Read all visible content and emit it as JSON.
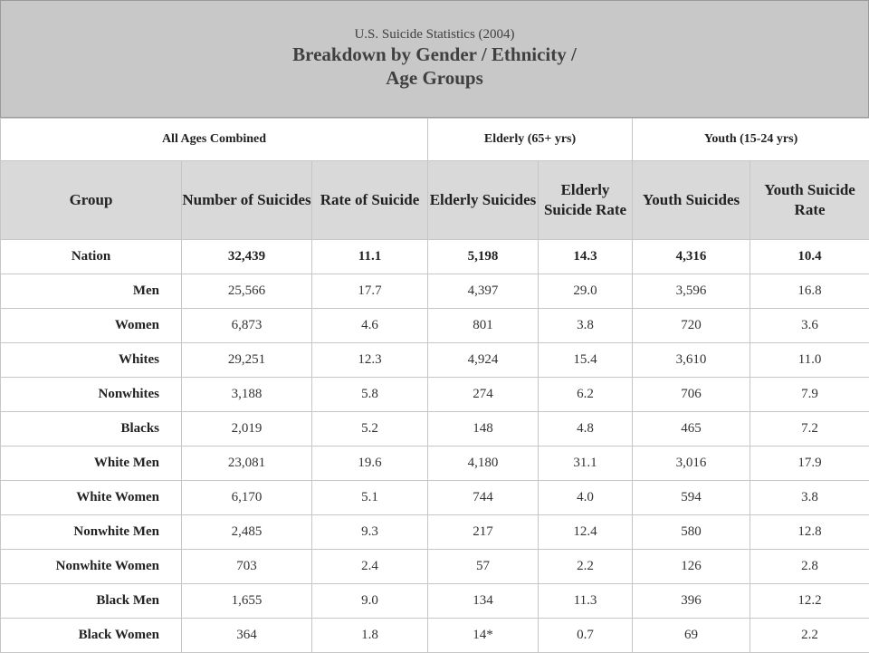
{
  "title": {
    "subtitle": "U.S. Suicide Statistics (2004)",
    "line1": "Breakdown by Gender / Ethnicity /",
    "line2": "Age Groups"
  },
  "column_groups": [
    "All Ages Combined",
    "Elderly (65+ yrs)",
    "Youth (15-24 yrs)"
  ],
  "headers": {
    "group": "Group",
    "number": "Number of Suicides",
    "rate": "Rate of Suicide",
    "elderly_suicides": "Elderly Suicides",
    "elderly_rate": "Elderly Suicide Rate",
    "youth_suicides": "Youth Suicides",
    "youth_rate": "Youth Suicide Rate"
  },
  "chart_data": {
    "type": "table",
    "title": "U.S. Suicide Statistics (2004) Breakdown by Gender / Ethnicity / Age Groups",
    "columns": [
      "Group",
      "Number of Suicides",
      "Rate of Suicide",
      "Elderly Suicides",
      "Elderly Suicide Rate",
      "Youth Suicides",
      "Youth Suicide Rate"
    ],
    "rows": [
      [
        "Nation",
        "32,439",
        "11.1",
        "5,198",
        "14.3",
        "4,316",
        "10.4"
      ],
      [
        "Men",
        "25,566",
        "17.7",
        "4,397",
        "29.0",
        "3,596",
        "16.8"
      ],
      [
        "Women",
        "6,873",
        "4.6",
        "801",
        "3.8",
        "720",
        "3.6"
      ],
      [
        "Whites",
        "29,251",
        "12.3",
        "4,924",
        "15.4",
        "3,610",
        "11.0"
      ],
      [
        "Nonwhites",
        "3,188",
        "5.8",
        "274",
        "6.2",
        "706",
        "7.9"
      ],
      [
        "Blacks",
        "2,019",
        "5.2",
        "148",
        "4.8",
        "465",
        "7.2"
      ],
      [
        "White Men",
        "23,081",
        "19.6",
        "4,180",
        "31.1",
        "3,016",
        "17.9"
      ],
      [
        "White Women",
        "6,170",
        "5.1",
        "744",
        "4.0",
        "594",
        "3.8"
      ],
      [
        "Nonwhite Men",
        "2,485",
        "9.3",
        "217",
        "12.4",
        "580",
        "12.8"
      ],
      [
        "Nonwhite Women",
        "703",
        "2.4",
        "57",
        "2.2",
        "126",
        "2.8"
      ],
      [
        "Black Men",
        "1,655",
        "9.0",
        "134",
        "11.3",
        "396",
        "12.2"
      ],
      [
        "Black Women",
        "364",
        "1.8",
        "14*",
        "0.7",
        "69",
        "2.2"
      ]
    ]
  }
}
